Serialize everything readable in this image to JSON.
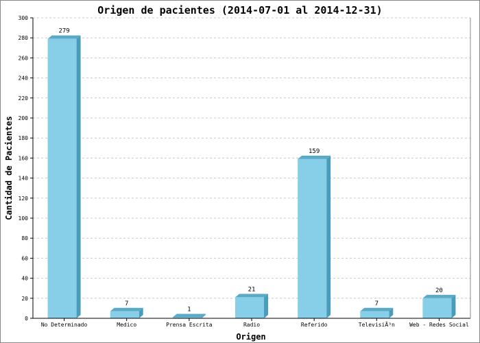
{
  "chart_data": {
    "type": "bar",
    "title": "Origen de pacientes  (2014-07-01 al 2014-12-31)",
    "xlabel": "Origen",
    "ylabel": "Cantidad de Pacientes",
    "categories": [
      "No Determinado",
      "Medico",
      "Prensa Escrita",
      "Radio",
      "Referido",
      "TelevisiÃ³n",
      "Web - Redes Social"
    ],
    "values": [
      279,
      7,
      1,
      21,
      159,
      7,
      20
    ],
    "ylim": [
      0,
      300
    ],
    "yticks": [
      0,
      20,
      40,
      60,
      80,
      100,
      120,
      140,
      160,
      180,
      200,
      220,
      240,
      260,
      280,
      300
    ],
    "grid": true,
    "colors": {
      "bar_front": "#87cee9",
      "bar_side": "#4a9cbb",
      "bar_top": "#5aa9c7",
      "grid": "#c8c8c8",
      "axis": "#000000"
    }
  }
}
